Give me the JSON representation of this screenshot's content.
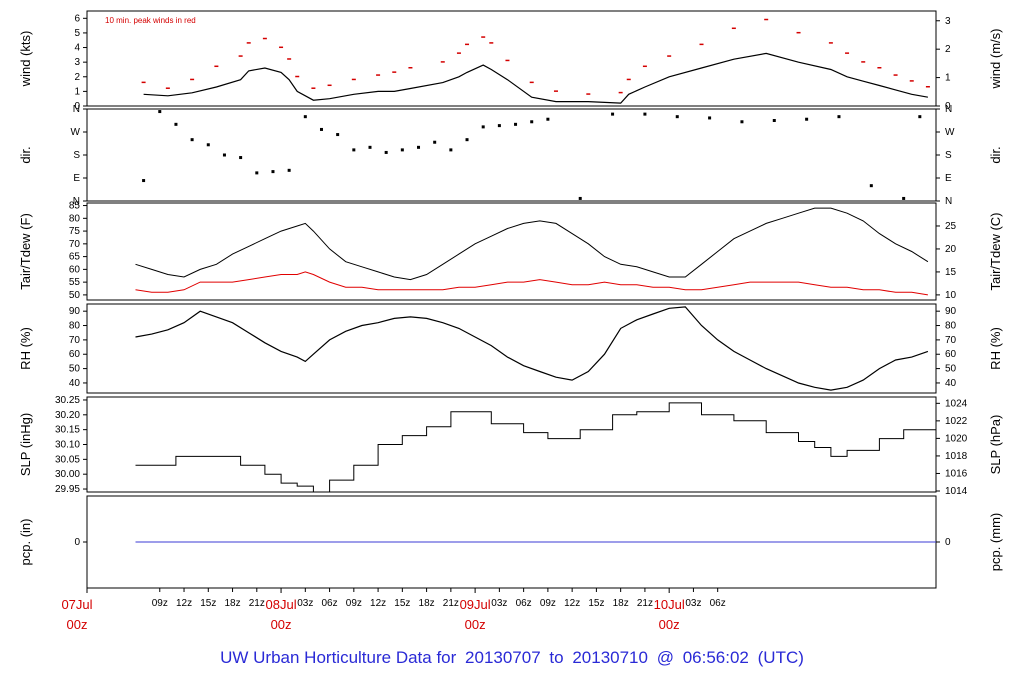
{
  "footer": {
    "prefix": "UW Urban Horticulture Data for",
    "start": "20130707",
    "joiner": "to",
    "end": "20130710",
    "at": "@",
    "time": "06:56:02",
    "tz": "(UTC)"
  },
  "colors": {
    "peak": "#d40000",
    "series": "#000000",
    "dew": "#e00000",
    "pcp": "#3b3bd6",
    "date_label": "#d40000",
    "footer": "#2a2ad6"
  },
  "x_axis": {
    "hour_ticks": [
      "09z",
      "12z",
      "15z",
      "18z",
      "21z",
      "03z",
      "06z",
      "09z",
      "12z",
      "15z",
      "18z",
      "21z",
      "03z",
      "06z",
      "09z",
      "12z",
      "15z",
      "18z",
      "21z",
      "03z",
      "06z"
    ],
    "date_labels": [
      {
        "day": "07Jul",
        "hour": "00z"
      },
      {
        "day": "08Jul",
        "hour": "00z"
      },
      {
        "day": "09Jul",
        "hour": "00z"
      },
      {
        "day": "10Jul",
        "hour": "00z"
      }
    ]
  },
  "chart_data": [
    {
      "type": "line",
      "id": "wind",
      "ylabel": "wind (kts)",
      "ylabel_right": "wind (m/s)",
      "annotation": "10 min. peak winds in red",
      "ylim": [
        0,
        6.5
      ],
      "yticks": [
        "0",
        "1",
        "2",
        "3",
        "4",
        "5",
        "6"
      ],
      "yticks_right": [
        "0",
        "1",
        "2",
        "3"
      ],
      "x_hours": [
        7,
        10,
        13,
        16,
        19,
        20,
        22,
        24,
        25,
        26,
        28,
        30,
        33,
        36,
        38,
        40,
        44,
        46,
        47,
        49,
        50,
        52,
        55,
        58,
        62,
        66,
        67,
        69,
        72,
        76,
        80,
        84,
        88,
        92,
        94,
        96,
        98,
        100,
        102,
        104
      ],
      "series": [
        {
          "name": "wind",
          "values": [
            0.8,
            0.7,
            0.9,
            1.3,
            1.8,
            2.4,
            2.6,
            2.3,
            1.8,
            1.0,
            0.4,
            0.5,
            0.8,
            1.0,
            1.0,
            1.2,
            1.6,
            2.0,
            2.3,
            2.8,
            2.5,
            1.8,
            0.6,
            0.3,
            0.3,
            0.2,
            0.8,
            1.3,
            2.0,
            2.6,
            3.2,
            3.6,
            3.0,
            2.5,
            2.0,
            1.7,
            1.4,
            1.1,
            0.8,
            0.6
          ]
        },
        {
          "name": "peak",
          "values": [
            1.6,
            1.2,
            1.8,
            2.7,
            3.4,
            4.3,
            4.6,
            4.0,
            3.2,
            2.0,
            1.2,
            1.4,
            1.8,
            2.1,
            2.3,
            2.6,
            3.0,
            3.6,
            4.2,
            4.7,
            4.3,
            3.1,
            1.6,
            1.0,
            0.8,
            0.9,
            1.8,
            2.7,
            3.4,
            4.2,
            5.3,
            5.9,
            5.0,
            4.3,
            3.6,
            3.0,
            2.6,
            2.1,
            1.7,
            1.3
          ]
        }
      ]
    },
    {
      "type": "scatter",
      "id": "dir",
      "ylabel": "dir.",
      "ylabel_right": "dir.",
      "yticks": [
        "N",
        "E",
        "S",
        "W",
        "N"
      ],
      "ylim": [
        0,
        360
      ],
      "x_hours": [
        7,
        9,
        11,
        13,
        15,
        17,
        19,
        21,
        23,
        25,
        27,
        29,
        31,
        33,
        35,
        37,
        39,
        41,
        43,
        45,
        47,
        49,
        51,
        53,
        55,
        57,
        61,
        65,
        69,
        73,
        77,
        81,
        85,
        89,
        93,
        97,
        101,
        103
      ],
      "values": [
        80,
        350,
        300,
        240,
        220,
        180,
        170,
        110,
        115,
        120,
        330,
        280,
        260,
        200,
        210,
        190,
        200,
        210,
        230,
        200,
        240,
        290,
        295,
        300,
        310,
        320,
        10,
        340,
        340,
        330,
        325,
        310,
        315,
        320,
        330,
        60,
        10,
        330
      ]
    },
    {
      "type": "line",
      "id": "temp",
      "ylabel": "Tair/Tdew (F)",
      "ylabel_right": "Tair/Tdew (C)",
      "ylim": [
        48,
        86
      ],
      "yticks": [
        "50",
        "55",
        "60",
        "65",
        "70",
        "75",
        "80",
        "85"
      ],
      "yticks_right": [
        "10",
        "15",
        "20",
        "25"
      ],
      "x_hours": [
        6,
        8,
        10,
        12,
        14,
        16,
        18,
        20,
        22,
        24,
        26,
        27,
        28,
        30,
        32,
        34,
        36,
        38,
        40,
        42,
        44,
        46,
        48,
        50,
        52,
        54,
        56,
        58,
        60,
        62,
        64,
        66,
        68,
        70,
        72,
        74,
        76,
        78,
        80,
        82,
        84,
        86,
        88,
        90,
        92,
        94,
        96,
        98,
        100,
        102,
        104
      ],
      "series": [
        {
          "name": "Tair",
          "values": [
            62,
            60,
            58,
            57,
            60,
            62,
            66,
            69,
            72,
            75,
            77,
            78,
            75,
            68,
            63,
            61,
            59,
            57,
            56,
            58,
            62,
            66,
            70,
            73,
            76,
            78,
            79,
            78,
            74,
            70,
            65,
            62,
            61,
            59,
            57,
            57,
            62,
            67,
            72,
            75,
            78,
            80,
            82,
            84,
            84,
            82,
            79,
            74,
            70,
            67,
            63
          ]
        },
        {
          "name": "Tdew",
          "values": [
            52,
            51,
            51,
            52,
            55,
            55,
            55,
            56,
            57,
            58,
            58,
            59,
            58,
            55,
            53,
            53,
            52,
            52,
            52,
            52,
            52,
            53,
            53,
            54,
            55,
            55,
            56,
            55,
            54,
            54,
            55,
            54,
            54,
            53,
            53,
            52,
            52,
            53,
            54,
            55,
            55,
            55,
            55,
            54,
            53,
            53,
            52,
            52,
            51,
            51,
            50
          ]
        }
      ]
    },
    {
      "type": "line",
      "id": "rh",
      "ylabel": "RH (%)",
      "ylabel_right": "RH (%)",
      "ylim": [
        33,
        95
      ],
      "yticks": [
        "40",
        "50",
        "60",
        "70",
        "80",
        "90"
      ],
      "yticks_right": [
        "40",
        "50",
        "60",
        "70",
        "80",
        "90"
      ],
      "x_hours": [
        6,
        8,
        10,
        12,
        14,
        16,
        18,
        20,
        22,
        24,
        26,
        27,
        28,
        30,
        32,
        34,
        36,
        38,
        40,
        42,
        44,
        46,
        48,
        50,
        52,
        54,
        56,
        58,
        60,
        62,
        64,
        66,
        68,
        70,
        72,
        74,
        76,
        78,
        80,
        82,
        84,
        86,
        88,
        90,
        92,
        94,
        96,
        98,
        100,
        102,
        104
      ],
      "values": [
        72,
        74,
        77,
        82,
        90,
        86,
        82,
        75,
        68,
        62,
        58,
        55,
        60,
        70,
        76,
        80,
        82,
        85,
        86,
        85,
        82,
        78,
        72,
        66,
        58,
        52,
        48,
        44,
        42,
        48,
        60,
        78,
        84,
        88,
        92,
        93,
        80,
        70,
        62,
        56,
        50,
        45,
        40,
        37,
        35,
        37,
        42,
        50,
        56,
        58,
        62
      ]
    },
    {
      "type": "line",
      "id": "slp",
      "ylabel": "SLP (inHg)",
      "ylabel_right": "SLP (hPa)",
      "ylim": [
        29.94,
        30.26
      ],
      "yticks": [
        "29.95",
        "30.00",
        "30.05",
        "30.10",
        "30.15",
        "30.20",
        "30.25"
      ],
      "yticks_right": [
        "1014",
        "1016",
        "1018",
        "1020",
        "1022",
        "1024"
      ],
      "x_hours": [
        6,
        11,
        16,
        19,
        22,
        24,
        26,
        28,
        30,
        33,
        36,
        39,
        42,
        45,
        50,
        54,
        57,
        61,
        65,
        68,
        72,
        76,
        80,
        84,
        88,
        90,
        92,
        94,
        98,
        101,
        103,
        105
      ],
      "values": [
        30.03,
        30.06,
        30.06,
        30.03,
        30.0,
        29.97,
        29.96,
        29.94,
        29.98,
        30.03,
        30.1,
        30.13,
        30.16,
        30.21,
        30.17,
        30.14,
        30.12,
        30.15,
        30.2,
        30.21,
        30.24,
        30.2,
        30.18,
        30.14,
        30.11,
        30.09,
        30.06,
        30.08,
        30.12,
        30.15,
        30.15,
        30.15
      ]
    },
    {
      "type": "line",
      "id": "pcp",
      "ylabel": "pcp. (in)",
      "ylabel_right": "pcp. (mm)",
      "ylim": [
        -1,
        1
      ],
      "yticks": [
        "0"
      ],
      "yticks_right": [
        "0"
      ],
      "x_hours": [
        6,
        105
      ],
      "values": [
        0,
        0
      ]
    }
  ]
}
